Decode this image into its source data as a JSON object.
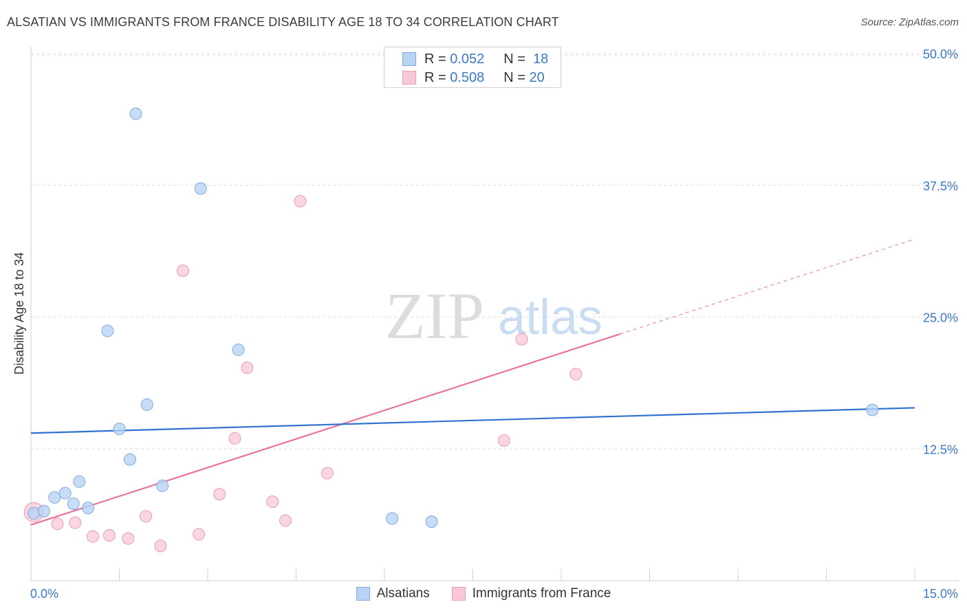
{
  "title": "ALSATIAN VS IMMIGRANTS FROM FRANCE DISABILITY AGE 18 TO 34 CORRELATION CHART",
  "source": "Source: ZipAtlas.com",
  "watermark": {
    "zip": "ZIP",
    "atlas": "atlas"
  },
  "legend": {
    "series1": {
      "r_label": "R =",
      "r_value": "0.052",
      "n_label": "N =",
      "n_value": "18"
    },
    "series2": {
      "r_label": "R =",
      "r_value": "0.508",
      "n_label": "N =",
      "n_value": "20"
    }
  },
  "colors": {
    "blue_fill": "#b9d3f5",
    "blue_stroke": "#7fa8dc",
    "blue_line": "#2f72d0",
    "pink_fill": "#f8c8d6",
    "pink_stroke": "#e99bb3",
    "pink_line": "#e8729a",
    "axis_text": "#3b78c6",
    "grid": "#dcdcdc"
  },
  "chart_data": {
    "type": "scatter",
    "title": "ALSATIAN VS IMMIGRANTS FROM FRANCE DISABILITY AGE 18 TO 34 CORRELATION CHART",
    "xlabel": "",
    "ylabel": "Disability Age 18 to 34",
    "xlim": [
      0,
      15
    ],
    "ylim": [
      0,
      50
    ],
    "x_tick_labels": [
      "0.0%",
      "15.0%"
    ],
    "y_ticks": [
      12.5,
      25.0,
      37.5,
      50.0
    ],
    "y_tick_labels": [
      "12.5%",
      "25.0%",
      "37.5%",
      "50.0%"
    ],
    "grid": true,
    "series": [
      {
        "name": "Alsatians",
        "points": [
          {
            "x": 0.05,
            "y": 6.4
          },
          {
            "x": 0.22,
            "y": 6.6
          },
          {
            "x": 0.4,
            "y": 7.9
          },
          {
            "x": 0.58,
            "y": 8.3
          },
          {
            "x": 0.72,
            "y": 7.3
          },
          {
            "x": 0.82,
            "y": 9.4
          },
          {
            "x": 0.97,
            "y": 6.9
          },
          {
            "x": 1.3,
            "y": 23.7
          },
          {
            "x": 1.5,
            "y": 14.4
          },
          {
            "x": 1.68,
            "y": 11.5
          },
          {
            "x": 1.78,
            "y": 44.3
          },
          {
            "x": 1.97,
            "y": 16.7
          },
          {
            "x": 2.23,
            "y": 9.0
          },
          {
            "x": 2.88,
            "y": 37.2
          },
          {
            "x": 3.52,
            "y": 21.9
          },
          {
            "x": 6.13,
            "y": 5.9
          },
          {
            "x": 6.8,
            "y": 5.6
          },
          {
            "x": 14.28,
            "y": 16.2
          }
        ],
        "trend": {
          "x0": 0,
          "y0": 14.0,
          "x1": 15,
          "y1": 16.4
        }
      },
      {
        "name": "Immigrants from France",
        "points": [
          {
            "x": 0.05,
            "y": 6.5
          },
          {
            "x": 0.45,
            "y": 5.4
          },
          {
            "x": 0.75,
            "y": 5.5
          },
          {
            "x": 1.05,
            "y": 4.2
          },
          {
            "x": 1.33,
            "y": 4.3
          },
          {
            "x": 1.65,
            "y": 4.0
          },
          {
            "x": 1.95,
            "y": 6.1
          },
          {
            "x": 2.2,
            "y": 3.3
          },
          {
            "x": 2.58,
            "y": 29.4
          },
          {
            "x": 2.85,
            "y": 4.4
          },
          {
            "x": 3.2,
            "y": 8.2
          },
          {
            "x": 3.46,
            "y": 13.5
          },
          {
            "x": 3.67,
            "y": 20.2
          },
          {
            "x": 4.1,
            "y": 7.5
          },
          {
            "x": 4.32,
            "y": 5.7
          },
          {
            "x": 4.57,
            "y": 36.0
          },
          {
            "x": 5.03,
            "y": 10.2
          },
          {
            "x": 8.03,
            "y": 13.3
          },
          {
            "x": 8.33,
            "y": 22.9
          },
          {
            "x": 9.25,
            "y": 19.6
          }
        ],
        "trend": {
          "x0": 0,
          "y0": 5.3,
          "x1": 10.0,
          "y1": 23.4
        },
        "trend_dashed_extension": {
          "x0": 10.0,
          "y0": 23.4,
          "x1": 15,
          "y1": 32.4
        }
      }
    ]
  }
}
